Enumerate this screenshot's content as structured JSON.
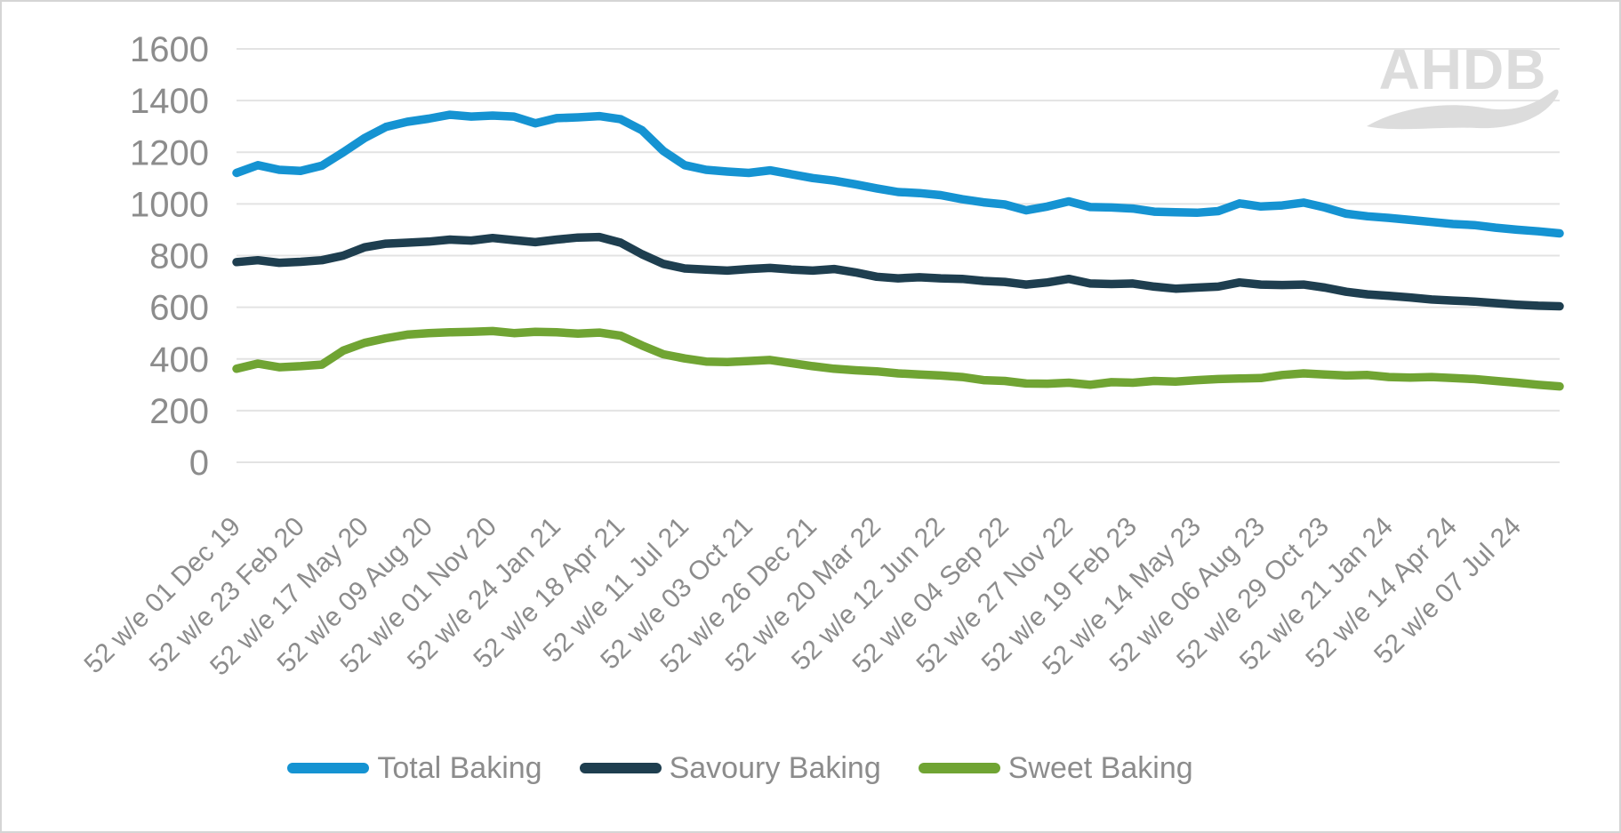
{
  "watermark": {
    "text": "AHDB"
  },
  "colors": {
    "background": "#FFFFFF",
    "border": "#D5D5D5",
    "grid": "#E3E3E3",
    "axis_text": "#8C8C8C",
    "legend_text": "#8C8C8C",
    "watermark": "#DCDCDC",
    "total_baking": "#1593D2",
    "savoury_baking": "#1E3E4F",
    "sweet_baking": "#70A433"
  },
  "chart_data": {
    "type": "line",
    "title": "",
    "xlabel": "",
    "ylabel": "",
    "grid": "horizontal",
    "legend_position": "bottom",
    "ylim": [
      0,
      1600
    ],
    "y_ticks": [
      0,
      200,
      400,
      600,
      800,
      1000,
      1200,
      1400,
      1600
    ],
    "x_tick_interval_weeks": 12,
    "sample_interval_weeks": 4,
    "total_weeks": 248,
    "x_tick_labels": [
      "52 w/e 01 Dec 19",
      "52 w/e 23 Feb 20",
      "52 w/e 17 May 20",
      "52 w/e 09 Aug 20",
      "52 w/e 01 Nov 20",
      "52 w/e 24 Jan 21",
      "52 w/e 18 Apr 21",
      "52 w/e 11 Jul 21",
      "52 w/e 03 Oct 21",
      "52 w/e 26 Dec 21",
      "52 w/e 20 Mar 22",
      "52 w/e 12 Jun 22",
      "52 w/e 04 Sep 22",
      "52 w/e 27 Nov 22",
      "52 w/e 19 Feb 23",
      "52 w/e 14 May 23",
      "52 w/e 06 Aug 23",
      "52 w/e 29 Oct 23",
      "52 w/e 21 Jan 24",
      "52 w/e 14 Apr 24",
      "52 w/e 07 Jul 24"
    ],
    "series": [
      {
        "name": "Total Baking",
        "color": "#1593D2",
        "values": [
          1120,
          1150,
          1132,
          1128,
          1148,
          1200,
          1255,
          1298,
          1318,
          1330,
          1345,
          1338,
          1342,
          1338,
          1312,
          1332,
          1335,
          1340,
          1328,
          1285,
          1205,
          1150,
          1132,
          1125,
          1120,
          1130,
          1115,
          1100,
          1090,
          1076,
          1060,
          1046,
          1042,
          1034,
          1018,
          1006,
          998,
          975,
          990,
          1010,
          988,
          986,
          982,
          970,
          968,
          966,
          972,
          1002,
          990,
          994,
          1005,
          986,
          962,
          952,
          946,
          938,
          930,
          922,
          918,
          908,
          900,
          894,
          886
        ]
      },
      {
        "name": "Savoury Baking",
        "color": "#1E3E4F",
        "values": [
          775,
          782,
          772,
          776,
          782,
          800,
          832,
          846,
          850,
          854,
          862,
          858,
          868,
          860,
          852,
          862,
          870,
          872,
          850,
          805,
          768,
          750,
          746,
          742,
          748,
          752,
          746,
          742,
          748,
          735,
          718,
          712,
          716,
          712,
          710,
          702,
          698,
          688,
          696,
          710,
          692,
          690,
          692,
          680,
          672,
          676,
          680,
          696,
          688,
          686,
          688,
          676,
          660,
          650,
          644,
          638,
          630,
          626,
          622,
          616,
          610,
          606,
          604
        ]
      },
      {
        "name": "Sweet Baking",
        "color": "#70A433",
        "values": [
          362,
          382,
          368,
          372,
          378,
          432,
          462,
          480,
          494,
          500,
          503,
          505,
          508,
          500,
          505,
          503,
          498,
          502,
          490,
          452,
          418,
          402,
          390,
          388,
          392,
          396,
          384,
          372,
          362,
          356,
          352,
          344,
          340,
          336,
          330,
          318,
          315,
          305,
          304,
          308,
          300,
          310,
          308,
          315,
          312,
          318,
          322,
          324,
          326,
          338,
          344,
          340,
          336,
          338,
          330,
          328,
          330,
          326,
          322,
          315,
          308,
          300,
          294
        ]
      }
    ]
  }
}
